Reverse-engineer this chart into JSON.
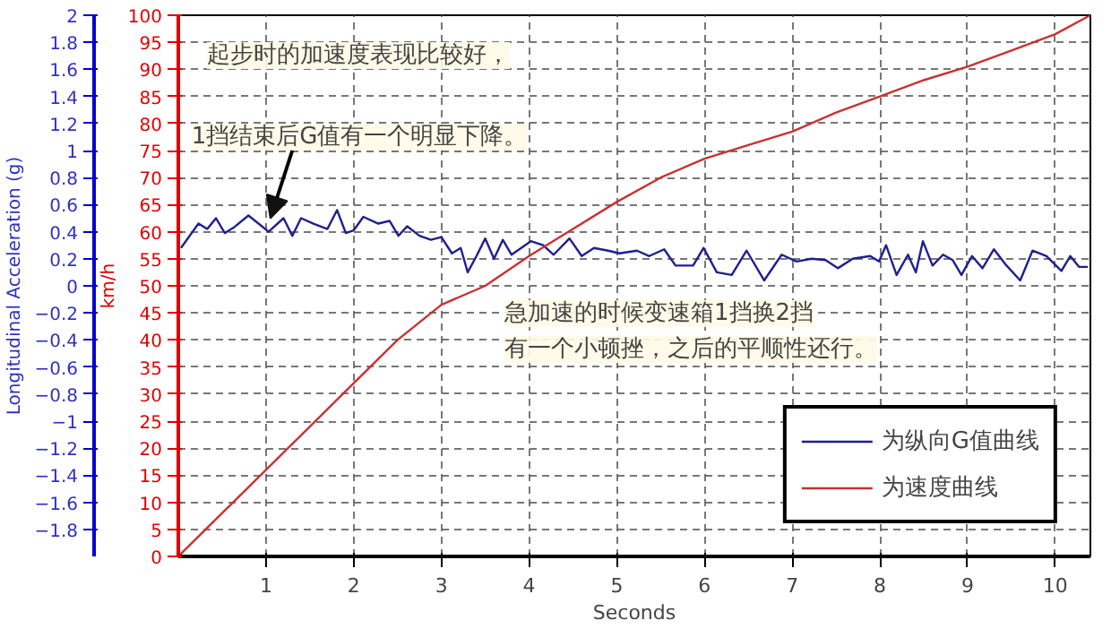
{
  "chart_data": {
    "type": "line",
    "xlabel": "Seconds",
    "ylabel": "km/h",
    "y2label": "Longitudinal Acceleration (g)",
    "x": [
      0,
      0.5,
      1,
      1.5,
      2,
      2.5,
      3,
      3.5,
      4,
      4.5,
      5,
      5.5,
      6,
      6.5,
      7,
      7.5,
      8,
      8.5,
      9,
      9.5,
      10,
      10.4
    ],
    "series": [
      {
        "name": "为纵向G值曲线",
        "color": "#1f1f8f",
        "axis": "y2",
        "x": [
          0.03,
          0.23,
          0.33,
          0.43,
          0.53,
          0.63,
          0.8,
          1.03,
          1.2,
          1.3,
          1.4,
          1.54,
          1.7,
          1.81,
          1.91,
          2.0,
          2.11,
          2.28,
          2.41,
          2.51,
          2.61,
          2.75,
          2.88,
          3.0,
          3.12,
          3.22,
          3.3,
          3.4,
          3.5,
          3.6,
          3.7,
          3.8,
          4.02,
          4.16,
          4.28,
          4.46,
          4.6,
          4.74,
          4.9,
          5.03,
          5.23,
          5.37,
          5.54,
          5.67,
          5.87,
          5.99,
          6.14,
          6.31,
          6.48,
          6.68,
          6.88,
          7.05,
          7.22,
          7.38,
          7.52,
          7.69,
          7.89,
          7.99,
          8.07,
          8.19,
          8.32,
          8.41,
          8.49,
          8.6,
          8.72,
          8.83,
          8.93,
          9.05,
          9.17,
          9.3,
          9.43,
          9.6,
          9.74,
          9.9,
          10.07,
          10.17,
          10.27,
          10.37
        ],
        "values": [
          0.28,
          0.46,
          0.42,
          0.5,
          0.39,
          0.43,
          0.52,
          0.4,
          0.5,
          0.37,
          0.5,
          0.46,
          0.42,
          0.56,
          0.39,
          0.41,
          0.51,
          0.46,
          0.48,
          0.37,
          0.44,
          0.37,
          0.34,
          0.36,
          0.24,
          0.28,
          0.1,
          0.22,
          0.35,
          0.2,
          0.34,
          0.23,
          0.33,
          0.3,
          0.23,
          0.35,
          0.22,
          0.28,
          0.26,
          0.24,
          0.26,
          0.22,
          0.27,
          0.15,
          0.15,
          0.28,
          0.1,
          0.08,
          0.26,
          0.04,
          0.23,
          0.18,
          0.2,
          0.19,
          0.13,
          0.2,
          0.22,
          0.18,
          0.3,
          0.08,
          0.23,
          0.1,
          0.33,
          0.15,
          0.23,
          0.19,
          0.08,
          0.22,
          0.13,
          0.27,
          0.16,
          0.04,
          0.26,
          0.22,
          0.11,
          0.22,
          0.14,
          0.14
        ]
      },
      {
        "name": "为速度曲线",
        "color": "#c83232",
        "values": [
          0,
          8,
          16,
          24,
          32,
          40,
          46.5,
          50,
          55.5,
          60.5,
          65.5,
          70,
          73.5,
          76,
          78.5,
          82,
          85,
          88,
          90.5,
          93.5,
          96.5,
          100
        ]
      }
    ],
    "xlim": [
      0,
      10.4
    ],
    "xticks": [
      1,
      2,
      3,
      4,
      5,
      6,
      7,
      8,
      9,
      10
    ],
    "ylim": [
      0,
      100
    ],
    "yticks": [
      0,
      5,
      10,
      15,
      20,
      25,
      30,
      35,
      40,
      45,
      50,
      55,
      60,
      65,
      70,
      75,
      80,
      85,
      90,
      95,
      100
    ],
    "y2lim": [
      -2,
      2
    ],
    "y2ticks": [
      -1.8,
      -1.6,
      -1.4,
      -1.2,
      -1,
      -0.8,
      -0.6,
      -0.4,
      -0.2,
      0,
      0.2,
      0.4,
      0.6,
      0.8,
      1,
      1.2,
      1.4,
      1.6,
      1.8,
      2
    ],
    "grid": true,
    "line_style": "solid",
    "legend": "bottom right",
    "annotations": [
      "起步时的加速度表现比较好，",
      {
        "text": "1挡结束后G值有一个明显下降。",
        "x": 1.05,
        "y": 61
      },
      "急加速的时候变速箱1挡换2挡",
      "有一个小顿挫，之后的平顺性还行。"
    ]
  }
}
